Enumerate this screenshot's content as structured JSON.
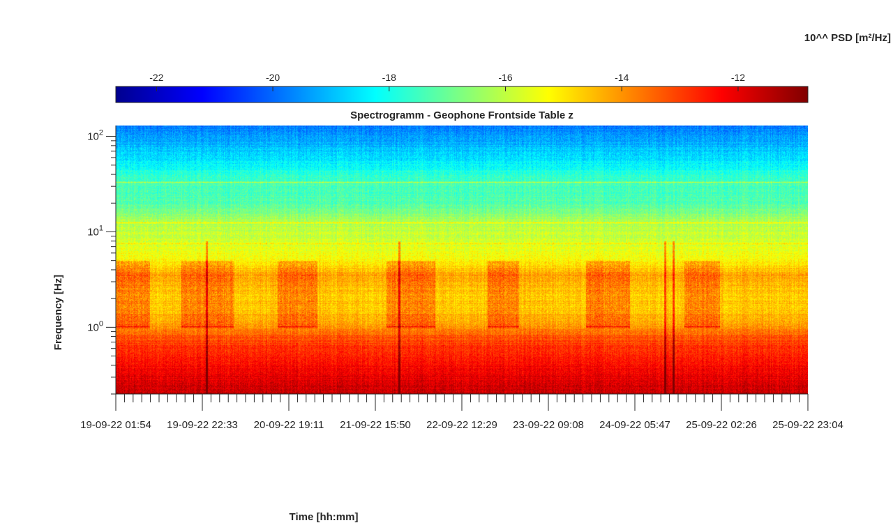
{
  "chart_data": {
    "type": "heatmap",
    "title": "Spectrogramm - Geophone Frontside Table z",
    "xlabel": "Time [hh:mm]",
    "ylabel": "Frequency [Hz]",
    "colorbar": {
      "label": "10^^ PSD [m²/Hz]",
      "range": [
        -22.7,
        -10.8
      ],
      "ticks": [
        -22,
        -20,
        -18,
        -16,
        -14,
        -12
      ],
      "colormap": "jet",
      "location": "top"
    },
    "y_scale": "log",
    "ylim": [
      0.2,
      130
    ],
    "y_ticks": [
      {
        "value": 1,
        "base": "10",
        "exp": "0"
      },
      {
        "value": 10,
        "base": "10",
        "exp": "1"
      },
      {
        "value": 100,
        "base": "10",
        "exp": "2"
      }
    ],
    "x_ticks": [
      "19-09-22  01:54",
      "19-09-22  22:33",
      "20-09-22  19:11",
      "21-09-22  15:50",
      "22-09-22  12:29",
      "23-09-22  09:08",
      "24-09-22  05:47",
      "25-09-22  02:26",
      "25-09-22  23:04"
    ],
    "x_minor_per_major": 10,
    "psd_profile_by_frequency": {
      "frequencies_hz": [
        0.2,
        0.3,
        0.5,
        0.8,
        1.0,
        1.5,
        2.5,
        3.5,
        5,
        7.5,
        12,
        20,
        35,
        60,
        130
      ],
      "log10_psd": [
        -11.6,
        -12.0,
        -12.6,
        -13.3,
        -14.0,
        -14.6,
        -14.6,
        -14.2,
        -15.2,
        -15.7,
        -16.1,
        -17.3,
        -17.5,
        -18.6,
        -19.8
      ]
    },
    "narrowband_lines": [
      {
        "frequency_hz": 7.5,
        "log10_psd": -15.2
      },
      {
        "frequency_hz": 12.5,
        "log10_psd": -15.0
      },
      {
        "frequency_hz": 33,
        "log10_psd": -16.3
      }
    ],
    "diurnal_activity": {
      "frequency_range_hz": [
        1.0,
        5.0
      ],
      "log10_psd_increase": 0.8,
      "periods": [
        [
          "19-09-22  01:54",
          "19-09-22  10:00"
        ],
        [
          "19-09-22  17:30",
          "20-09-22  06:00"
        ],
        [
          "20-09-22  16:30",
          "21-09-22  02:00"
        ],
        [
          "21-09-22  18:30",
          "22-09-22  06:00"
        ],
        [
          "22-09-22  18:30",
          "23-09-22  02:00"
        ],
        [
          "23-09-22  18:00",
          "24-09-22  04:30"
        ],
        [
          "24-09-22  17:30",
          "25-09-22  02:00"
        ]
      ]
    },
    "transient_events": [
      "19-09-22  23:30",
      "21-09-22  21:30",
      "24-09-22  13:00",
      "24-09-22  15:00"
    ],
    "grid": false
  }
}
